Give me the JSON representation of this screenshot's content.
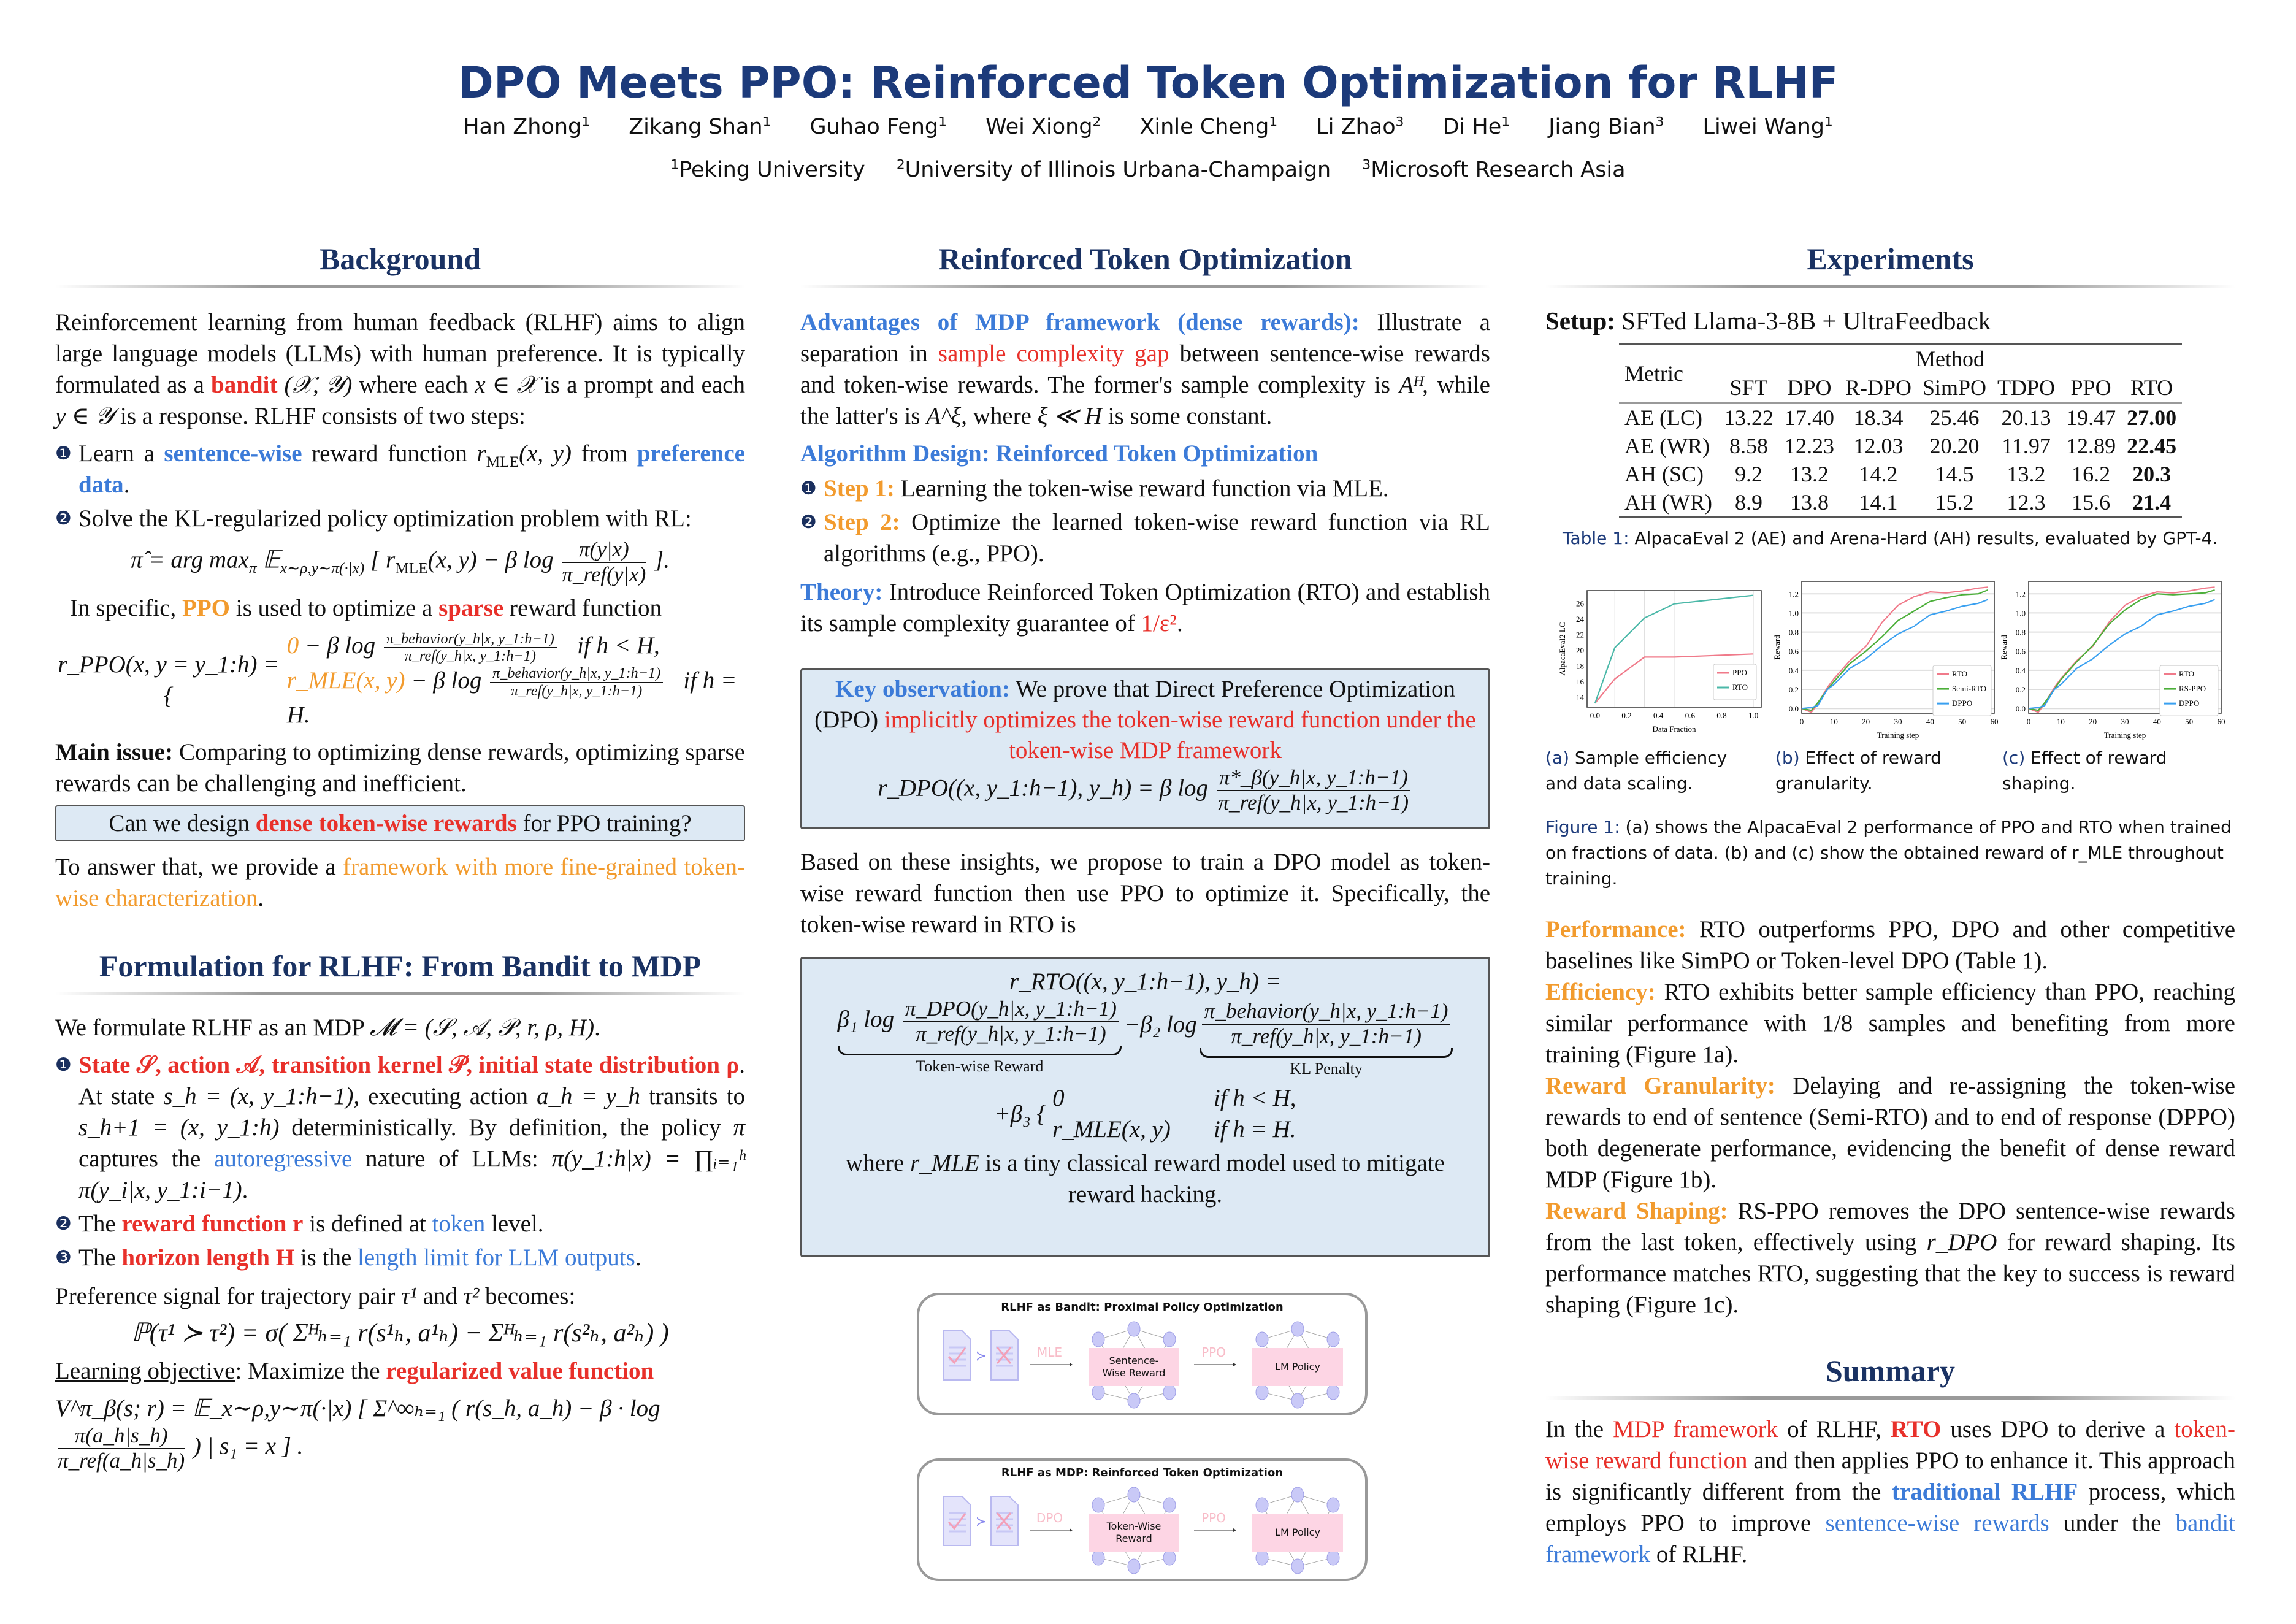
{
  "header": {
    "title": "DPO Meets PPO: Reinforced Token Optimization for RLHF",
    "authors": [
      {
        "name": "Han Zhong",
        "aff": "1"
      },
      {
        "name": "Zikang Shan",
        "aff": "1"
      },
      {
        "name": "Guhao Feng",
        "aff": "1"
      },
      {
        "name": "Wei Xiong",
        "aff": "2"
      },
      {
        "name": "Xinle Cheng",
        "aff": "1"
      },
      {
        "name": "Li Zhao",
        "aff": "3"
      },
      {
        "name": "Di He",
        "aff": "1"
      },
      {
        "name": "Jiang Bian",
        "aff": "3"
      },
      {
        "name": "Liwei Wang",
        "aff": "1"
      }
    ],
    "affiliations": [
      {
        "num": "1",
        "name": "Peking University"
      },
      {
        "num": "2",
        "name": "University of Illinois Urbana-Champaign"
      },
      {
        "num": "3",
        "name": "Microsoft Research Asia"
      }
    ]
  },
  "background": {
    "heading": "Background",
    "p1": [
      {
        "t": "Reinforcement learning from human feedback (RLHF) aims to align large language models (LLMs) with human preference. It is typically formulated as a "
      },
      {
        "t": "bandit",
        "s": "br"
      },
      {
        "t": " (𝒳, 𝒴)",
        "s": "m"
      },
      {
        "t": " where each "
      },
      {
        "t": "x ∈ 𝒳",
        "s": "m"
      },
      {
        "t": " is a prompt and each "
      },
      {
        "t": "y ∈ 𝒴",
        "s": "m"
      },
      {
        "t": " is a response. RLHF consists of two steps:"
      }
    ],
    "item1_num": "❶",
    "item1": [
      {
        "t": "Learn a "
      },
      {
        "t": "sentence-wise",
        "s": "bb"
      },
      {
        "t": " reward function "
      },
      {
        "t": "r",
        "s": "m"
      },
      {
        "t": "MLE",
        "s": "sub"
      },
      {
        "t": "(x, y)",
        "s": "m"
      },
      {
        "t": " from "
      },
      {
        "t": "preference data",
        "s": "bb"
      },
      {
        "t": "."
      }
    ],
    "item2_num": "❷",
    "item2": [
      {
        "t": "Solve the KL-regularized policy optimization problem with RL:"
      }
    ],
    "eq1": {
      "lhs": "π̂ = arg max",
      "sub_pi": "π",
      "E": " 𝔼",
      "E_sub": "x∼ρ,y∼π(·|x)",
      "mid": " [ r",
      "mle": "MLE",
      "xy": "(x, y) − β log ",
      "num": "π(y|x)",
      "den": "π_ref(y|x)",
      "end": " ]."
    },
    "specific": [
      {
        "t": "In specific, "
      },
      {
        "t": "PPO",
        "s": "bo"
      },
      {
        "t": " is used to optimize a "
      },
      {
        "t": "sparse",
        "s": "br"
      },
      {
        "t": " reward function"
      }
    ],
    "eq2": {
      "lhs": "r_PPO(x, y = y_1:h) = {",
      "c1a": "0",
      "c1b": " − β log ",
      "c2a": "r_MLE(x, y)",
      "c2b": " − β log ",
      "num": "π_behavior(y_h|x, y_1:h−1)",
      "den": "π_ref(y_h|x, y_1:h−1)",
      "cond1": "if h < H,",
      "cond2": "if h = H."
    },
    "issue": [
      {
        "t": "Main issue:",
        "s": "b"
      },
      {
        "t": " Comparing to optimizing dense rewards, optimizing sparse rewards can be challenging and inefficient."
      }
    ],
    "question": [
      {
        "t": "Can we design "
      },
      {
        "t": "dense token-wise rewards",
        "s": "br"
      },
      {
        "t": " for PPO training?"
      }
    ],
    "answer": [
      {
        "t": "To answer that, we provide a "
      },
      {
        "t": "framework with more fine-grained token-wise characterization",
        "s": "orange"
      },
      {
        "t": "."
      }
    ]
  },
  "formulation": {
    "heading": "Formulation for RLHF: From Bandit to MDP",
    "intro": [
      {
        "t": "We formulate RLHF as an MDP "
      },
      {
        "t": "𝓜 = (𝒮, 𝒜, 𝒫, r, ρ, H)",
        "s": "m"
      },
      {
        "t": "."
      }
    ],
    "items": [
      {
        "num": "❶",
        "seg": [
          {
            "t": "State 𝒮, action 𝒜, transition kernel 𝒫, initial state distribution ρ",
            "s": "br"
          },
          {
            "t": ". At state "
          },
          {
            "t": "s_h = (x, y_1:h−1)",
            "s": "m"
          },
          {
            "t": ", executing action "
          },
          {
            "t": "a_h = y_h",
            "s": "m"
          },
          {
            "t": " transits to "
          },
          {
            "t": "s_h+1 = (x, y_1:h)",
            "s": "m"
          },
          {
            "t": " deterministically. By definition, the policy "
          },
          {
            "t": "π",
            "s": "m"
          },
          {
            "t": " captures the "
          },
          {
            "t": "autoregressive",
            "s": "blue"
          },
          {
            "t": " nature of LLMs: "
          },
          {
            "t": "π(y_1:h|x) = ∏ᵢ₌₁ʰ π(y_i|x, y_1:i−1)",
            "s": "m"
          },
          {
            "t": "."
          }
        ]
      },
      {
        "num": "❷",
        "seg": [
          {
            "t": "The "
          },
          {
            "t": "reward function",
            "s": "br"
          },
          {
            "t": " r",
            "s": "br"
          },
          {
            "t": " is defined at "
          },
          {
            "t": "token",
            "s": "blue"
          },
          {
            "t": " level."
          }
        ]
      },
      {
        "num": "❸",
        "seg": [
          {
            "t": "The "
          },
          {
            "t": "horizon length",
            "s": "br"
          },
          {
            "t": " H",
            "s": "br"
          },
          {
            "t": " is the "
          },
          {
            "t": "length limit for LLM outputs",
            "s": "blue"
          },
          {
            "t": "."
          }
        ]
      }
    ],
    "pref": [
      {
        "t": "Preference signal for trajectory pair "
      },
      {
        "t": "τ¹",
        "s": "m"
      },
      {
        "t": " and "
      },
      {
        "t": "τ²",
        "s": "m"
      },
      {
        "t": " becomes:"
      }
    ],
    "eq3": "ℙ(τ¹ ≻ τ²) = σ( Σᴴₕ₌₁ r(s¹ₕ, a¹ₕ) − Σᴴₕ₌₁ r(s²ₕ, a²ₕ) )",
    "objective": [
      {
        "t": "Learning objective",
        "s": "u"
      },
      {
        "t": ": Maximize the "
      },
      {
        "t": "regularized value function",
        "s": "br"
      }
    ],
    "eq4": {
      "lhs": "V^π_β(s; r) = 𝔼_x∼ρ,y∼π(·|x) [ Σ^∞ₕ₌₁ ( r(s_h, a_h) − β · log ",
      "num": "π(a_h|s_h)",
      "den": "π_ref(a_h|s_h)",
      "end": " ) | s₁ = x ] ."
    }
  },
  "rto": {
    "heading": "Reinforced Token Optimization",
    "adv": [
      {
        "t": "Advantages of MDP framework (dense rewards):",
        "s": "bb"
      },
      {
        "t": " Illustrate a separation in "
      },
      {
        "t": "sample complexity gap",
        "s": "red"
      },
      {
        "t": " between sentence-wise rewards and token-wise rewards. The former's sample complexity is "
      },
      {
        "t": "Aᴴ",
        "s": "m"
      },
      {
        "t": ", while the latter's is "
      },
      {
        "t": "A^ξ",
        "s": "m"
      },
      {
        "t": ", where "
      },
      {
        "t": "ξ ≪ H",
        "s": "m"
      },
      {
        "t": " is some constant."
      }
    ],
    "alg_heading": "Algorithm Design: Reinforced Token Optimization",
    "steps": [
      {
        "num": "❶",
        "seg": [
          {
            "t": "Step 1:",
            "s": "bo"
          },
          {
            "t": " Learning the token-wise reward function via MLE."
          }
        ]
      },
      {
        "num": "❷",
        "seg": [
          {
            "t": "Step 2:",
            "s": "bo"
          },
          {
            "t": " Optimize the learned token-wise reward function via RL algorithms (e.g., PPO)."
          }
        ]
      }
    ],
    "theory": [
      {
        "t": "Theory:",
        "s": "bb"
      },
      {
        "t": " Introduce Reinforced Token Optimization (RTO) and establish its sample complexity guarantee of "
      },
      {
        "t": "1/ε²",
        "s": "red"
      },
      {
        "t": "."
      }
    ],
    "key": [
      {
        "t": "Key observation:",
        "s": "bb"
      },
      {
        "t": " We prove that Direct Preference Optimization (DPO) "
      },
      {
        "t": "implicitly optimizes the token-wise reward function under the token-wise MDP framework",
        "s": "red"
      }
    ],
    "eq_dpo": {
      "lhs": "r_DPO((x, y_1:h−1), y_h) = β log ",
      "num": "π*_β(y_h|x, y_1:h−1)",
      "den": "π_ref(y_h|x, y_1:h−1)"
    },
    "based": [
      {
        "t": "Based on these insights, we propose to train a DPO model as token-wise reward function then use PPO to optimize it. Specifically, the token-wise reward in RTO is"
      }
    ],
    "eq_rto": {
      "line1": "r_RTO((x, y_1:h−1), y_h) =",
      "b1": "β₁ log ",
      "num1": "π_DPO(y_h|x, y_1:h−1)",
      "den1": "π_ref(y_h|x, y_1:h−1)",
      "minus": " −β₂ log ",
      "num2": "π_behavior(y_h|x, y_1:h−1)",
      "den2": "π_ref(y_h|x, y_1:h−1)",
      "brace1": "Token-wise Reward",
      "brace2": "KL Penalty",
      "b3": "+β₃ {",
      "c1": "0",
      "c2": "r_MLE(x, y)",
      "cond1": "if h < H,",
      "cond2": "if h = H."
    },
    "where": [
      {
        "t": "where "
      },
      {
        "t": "r_MLE",
        "s": "m"
      },
      {
        "t": " is a tiny classical reward model used to mitigate reward hacking."
      }
    ],
    "diagrams": [
      {
        "title": "RLHF as Bandit: Proximal Policy Optimization",
        "arrow1": "MLE",
        "box1": "Sentence-Wise Reward",
        "arrow2": "PPO",
        "box2": "LM Policy",
        "pref": "≻"
      },
      {
        "title": "RLHF as MDP: Reinforced Token Optimization",
        "arrow1": "DPO",
        "box1": "Token-Wise Reward",
        "arrow2": "PPO",
        "box2": "LM Policy",
        "pref": "≻"
      }
    ]
  },
  "experiments": {
    "heading": "Experiments",
    "setup": [
      {
        "t": "Setup:",
        "s": "b"
      },
      {
        "t": " SFTed Llama-3-8B + UltraFeedback"
      }
    ],
    "table": {
      "metric_header": "Metric",
      "method_header": "Method",
      "columns": [
        "SFT",
        "DPO",
        "R-DPO",
        "SimPO",
        "TDPO",
        "PPO",
        "RTO"
      ],
      "rows": [
        {
          "metric": "AE (LC)",
          "values": [
            "13.22",
            "17.40",
            "18.34",
            "25.46",
            "20.13",
            "19.47",
            "27.00"
          ]
        },
        {
          "metric": "AE (WR)",
          "values": [
            "8.58",
            "12.23",
            "12.03",
            "20.20",
            "11.97",
            "12.89",
            "22.45"
          ]
        },
        {
          "metric": "AH (SC)",
          "values": [
            "9.2",
            "13.2",
            "14.2",
            "14.5",
            "13.2",
            "16.2",
            "20.3"
          ]
        },
        {
          "metric": "AH (WR)",
          "values": [
            "8.9",
            "13.8",
            "14.1",
            "15.2",
            "12.3",
            "15.6",
            "21.4"
          ]
        }
      ],
      "caption_label": "Table 1:",
      "caption": " AlpacaEval 2 (AE) and Arena-Hard (AH) results, evaluated by GPT-4."
    },
    "subcaptions": [
      {
        "label": "(a)",
        "text": " Sample efficiency and data scaling."
      },
      {
        "label": "(b)",
        "text": " Effect of reward granularity."
      },
      {
        "label": "(c)",
        "text": " Effect of reward shaping."
      }
    ],
    "fig_caption_label": "Figure 1:",
    "fig_caption": " (a) shows the AlpacaEval 2 performance of PPO and RTO when trained on fractions of data. (b) and (c) show the obtained reward of r_MLE throughout training.",
    "paras": [
      [
        {
          "t": "Performance:",
          "s": "bo"
        },
        {
          "t": " RTO outperforms PPO, DPO and other competitive baselines like SimPO or Token-level DPO (Table 1)."
        }
      ],
      [
        {
          "t": "Efficiency:",
          "s": "bo"
        },
        {
          "t": " RTO exhibits better sample efficiency than PPO, reaching similar performance with 1/8 samples and benefiting from more training (Figure 1a)."
        }
      ],
      [
        {
          "t": "Reward Granularity:",
          "s": "bo"
        },
        {
          "t": " Delaying and re-assigning the token-wise rewards to end of sentence (Semi-RTO) and to end of response (DPPO) both degenerate performance, evidencing the benefit of dense reward MDP (Figure 1b)."
        }
      ],
      [
        {
          "t": "Reward Shaping:",
          "s": "bo"
        },
        {
          "t": " RS-PPO removes the DPO sentence-wise rewards from the last token, effectively using "
        },
        {
          "t": "r_DPO",
          "s": "m"
        },
        {
          "t": " for reward shaping. Its performance matches RTO, suggesting that the key to success is reward shaping (Figure 1c)."
        }
      ]
    ]
  },
  "summary": {
    "heading": "Summary",
    "text": [
      {
        "t": "In the "
      },
      {
        "t": "MDP framework",
        "s": "red"
      },
      {
        "t": " of RLHF, "
      },
      {
        "t": "RTO",
        "s": "br"
      },
      {
        "t": " uses DPO to derive a "
      },
      {
        "t": "token-wise reward function",
        "s": "red"
      },
      {
        "t": " and then applies PPO to enhance it. This approach is significantly different from the "
      },
      {
        "t": "traditional RLHF",
        "s": "bb"
      },
      {
        "t": " process, which employs PPO to improve "
      },
      {
        "t": "sentence-wise rewards",
        "s": "blue"
      },
      {
        "t": " under the "
      },
      {
        "t": "bandit framework",
        "s": "blue"
      },
      {
        "t": " of RLHF."
      }
    ]
  },
  "colors": {
    "navy": "#1c3a7a",
    "blue": "#3c7bd8",
    "red": "#e8302a",
    "orange": "#f29b2e",
    "rto_line": "#f07a8a",
    "rto_teal": "#4bb8a8",
    "semi": "#4caf3a",
    "dppo": "#3aa0f0"
  },
  "chart_data": [
    {
      "type": "line",
      "title": "",
      "xlabel": "Data Fraction",
      "ylabel": "AlpacaEval2 LC",
      "xlim": [
        -0.05,
        1.05
      ],
      "ylim": [
        12.7,
        27.6
      ],
      "xticks": [
        "0.0",
        "0.2",
        "0.4",
        "0.6",
        "0.8",
        "1.0"
      ],
      "yticks": [
        "14",
        "16",
        "18",
        "20",
        "22",
        "24",
        "26"
      ],
      "grid": true,
      "legend": "bottom-right",
      "x": [
        0,
        0.125,
        0.3125,
        0.5,
        1.0
      ],
      "series": [
        {
          "name": "PPO",
          "values": [
            13.2,
            16.3,
            19.1,
            19.1,
            19.5
          ]
        },
        {
          "name": "RTO",
          "values": [
            13.2,
            20.3,
            24.1,
            25.9,
            27.0
          ]
        }
      ]
    },
    {
      "type": "line",
      "title": "",
      "xlabel": "Training step",
      "ylabel": "Reward",
      "xlim": [
        0,
        60
      ],
      "ylim": [
        -0.05,
        1.33
      ],
      "xticks": [
        "0",
        "10",
        "20",
        "30",
        "40",
        "50",
        "60"
      ],
      "yticks": [
        "0.0",
        "0.2",
        "0.4",
        "0.6",
        "0.8",
        "1.0",
        "1.2"
      ],
      "grid": true,
      "legend": "center-right",
      "x": [
        0,
        3,
        5,
        8,
        10,
        15,
        20,
        25,
        30,
        35,
        40,
        45,
        50,
        55,
        58
      ],
      "series": [
        {
          "name": "RTO",
          "values": [
            0,
            -0.04,
            0.05,
            0.22,
            0.31,
            0.5,
            0.65,
            0.9,
            1.08,
            1.17,
            1.22,
            1.21,
            1.23,
            1.26,
            1.27
          ]
        },
        {
          "name": "Semi-RTO",
          "values": [
            0,
            -0.02,
            0.06,
            0.2,
            0.28,
            0.47,
            0.6,
            0.75,
            0.92,
            1.02,
            1.12,
            1.16,
            1.19,
            1.2,
            1.24
          ]
        },
        {
          "name": "DPPO",
          "values": [
            0,
            0.01,
            0.03,
            0.2,
            0.25,
            0.42,
            0.52,
            0.66,
            0.78,
            0.86,
            0.98,
            1.02,
            1.07,
            1.1,
            1.14
          ]
        }
      ]
    },
    {
      "type": "line",
      "title": "",
      "xlabel": "Training step",
      "ylabel": "Reward",
      "xlim": [
        0,
        60
      ],
      "ylim": [
        -0.05,
        1.33
      ],
      "xticks": [
        "0",
        "10",
        "20",
        "30",
        "40",
        "50",
        "60"
      ],
      "yticks": [
        "0.0",
        "0.2",
        "0.4",
        "0.6",
        "0.8",
        "1.0",
        "1.2"
      ],
      "grid": true,
      "legend": "center-right",
      "x": [
        0,
        3,
        5,
        8,
        10,
        15,
        20,
        25,
        30,
        35,
        40,
        45,
        50,
        55,
        58
      ],
      "series": [
        {
          "name": "RTO",
          "values": [
            0,
            -0.04,
            0.05,
            0.22,
            0.31,
            0.5,
            0.65,
            0.9,
            1.08,
            1.17,
            1.22,
            1.21,
            1.23,
            1.26,
            1.27
          ]
        },
        {
          "name": "RS-PPO",
          "values": [
            0,
            -0.02,
            0.06,
            0.2,
            0.3,
            0.49,
            0.66,
            0.88,
            1.03,
            1.14,
            1.2,
            1.19,
            1.2,
            1.21,
            1.24
          ]
        },
        {
          "name": "DPPO",
          "values": [
            0,
            0.01,
            0.03,
            0.2,
            0.25,
            0.42,
            0.52,
            0.66,
            0.78,
            0.86,
            0.98,
            1.02,
            1.07,
            1.1,
            1.14
          ]
        }
      ]
    }
  ]
}
